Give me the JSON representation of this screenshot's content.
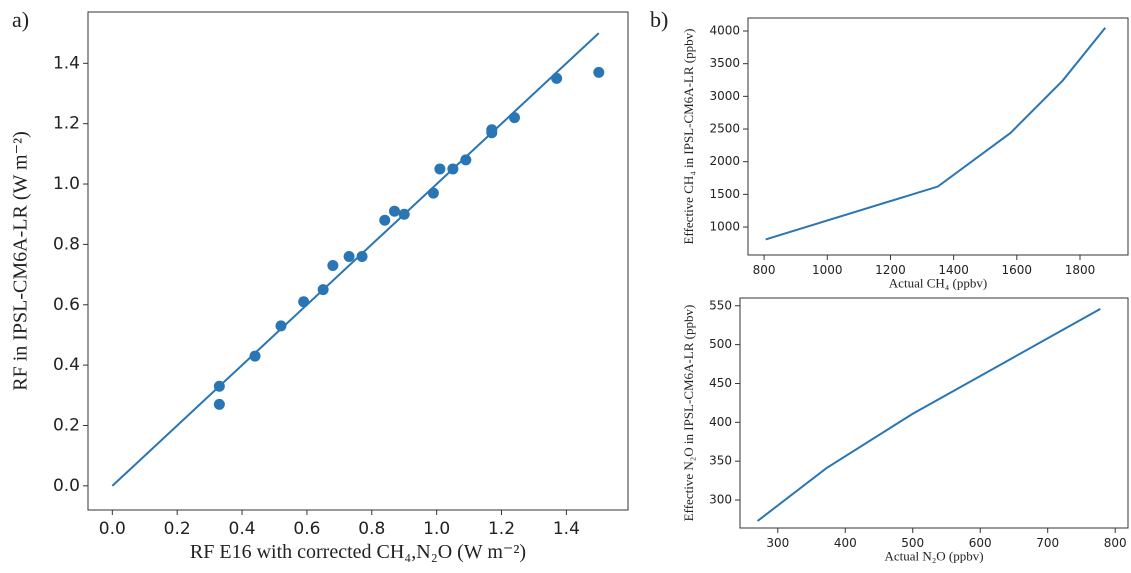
{
  "chart_data": [
    {
      "type": "scatter",
      "panel_label": "a)",
      "xlabel": "RF E16 with corrected CH₄,N₂O (W m⁻²)",
      "ylabel": "RF in IPSL-CM6A-LR (W m⁻²)",
      "xlim": [
        -0.075,
        1.59
      ],
      "ylim": [
        -0.08,
        1.57
      ],
      "xticks": [
        {
          "value": 0,
          "label": "0.0"
        },
        0.2,
        0.4,
        0.6,
        0.8,
        {
          "value": 1,
          "label": "1.0"
        },
        1.2,
        1.4
      ],
      "yticks": [
        {
          "value": 0,
          "label": "0.0"
        },
        0.2,
        0.4,
        0.6,
        0.8,
        {
          "value": 1,
          "label": "1.0"
        },
        1.2,
        1.4
      ],
      "series": [
        {
          "type": "scatter",
          "color": "#2a75b3",
          "x": [
            0.33,
            0.33,
            0.44,
            0.52,
            0.59,
            0.65,
            0.68,
            0.73,
            0.77,
            0.84,
            0.87,
            0.9,
            0.99,
            1.01,
            1.05,
            1.09,
            1.17,
            1.17,
            1.24,
            1.37,
            1.5
          ],
          "values": [
            0.33,
            0.27,
            0.43,
            0.53,
            0.61,
            0.65,
            0.73,
            0.76,
            0.76,
            0.88,
            0.91,
            0.9,
            0.97,
            1.05,
            1.05,
            1.08,
            1.18,
            1.17,
            1.22,
            1.35,
            1.37
          ]
        },
        {
          "type": "line",
          "color": "#2a75b3",
          "x": [
            0,
            1.5
          ],
          "values": [
            0,
            1.5
          ]
        }
      ]
    },
    {
      "type": "line",
      "panel_label": "b)",
      "xlabel": "Actual CH₄ (ppbv)",
      "ylabel": "Effective CH₄ in IPSL-CM6A-LR (ppbv)",
      "xlim": [
        749,
        1952
      ],
      "ylim": [
        572,
        4199
      ],
      "xticks": [
        800,
        1000,
        1200,
        1400,
        1600,
        1800
      ],
      "yticks": [
        1000,
        1500,
        2000,
        2500,
        3000,
        3500,
        4000
      ],
      "series": [
        {
          "type": "line",
          "color": "#2a75b3",
          "x": [
            805,
            1350,
            1580,
            1745,
            1880
          ],
          "values": [
            810,
            1620,
            2440,
            3240,
            4050
          ]
        }
      ]
    },
    {
      "type": "line",
      "xlabel": "Actual N₂O (ppbv)",
      "ylabel": "Effective N₂O in IPSL-CM6A-LR (ppbv)",
      "xlim": [
        244,
        819
      ],
      "ylim": [
        264,
        560
      ],
      "xticks": [
        300,
        400,
        500,
        600,
        700,
        800
      ],
      "yticks": [
        300,
        350,
        400,
        450,
        500,
        550
      ],
      "series": [
        {
          "type": "line",
          "color": "#2a75b3",
          "x": [
            270,
            372,
            500,
            778
          ],
          "values": [
            273,
            341,
            411,
            546
          ]
        }
      ]
    }
  ]
}
